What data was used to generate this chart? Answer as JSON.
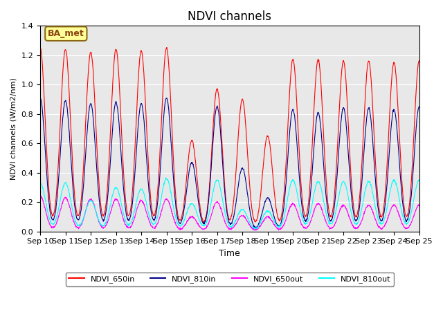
{
  "title": "NDVI channels",
  "xlabel": "Time",
  "ylabel": "NDVI channels (W/m2/nm)",
  "ylim": [
    0.0,
    1.4
  ],
  "annotation": "BA_met",
  "bg_color": "#e8e8e8",
  "legend": [
    "NDVI_650in",
    "NDVI_810in",
    "NDVI_650out",
    "NDVI_810out"
  ],
  "colors": [
    "#ff0000",
    "#00008b",
    "#ff00ff",
    "#00ffff"
  ],
  "x_tick_labels": [
    "Sep 10",
    "Sep 11",
    "Sep 12",
    "Sep 13",
    "Sep 14",
    "Sep 15",
    "Sep 16",
    "Sep 17",
    "Sep 18",
    "Sep 19",
    "Sep 20",
    "Sep 21",
    "Sep 22",
    "Sep 23",
    "Sep 24",
    "Sep 25"
  ],
  "peaks_650in": [
    1.25,
    1.24,
    1.22,
    1.24,
    1.23,
    1.25,
    0.62,
    0.97,
    0.9,
    0.65,
    1.17,
    1.17,
    1.16,
    1.16,
    1.15,
    1.16
  ],
  "peaks_810in": [
    0.91,
    0.89,
    0.87,
    0.88,
    0.87,
    0.91,
    0.47,
    0.85,
    0.43,
    0.23,
    0.83,
    0.81,
    0.84,
    0.84,
    0.83,
    0.85
  ],
  "peaks_650out": [
    0.24,
    0.23,
    0.22,
    0.22,
    0.21,
    0.22,
    0.1,
    0.2,
    0.11,
    0.1,
    0.19,
    0.19,
    0.18,
    0.18,
    0.18,
    0.18
  ],
  "peaks_810out": [
    0.33,
    0.33,
    0.21,
    0.3,
    0.29,
    0.36,
    0.19,
    0.35,
    0.15,
    0.14,
    0.35,
    0.34,
    0.34,
    0.34,
    0.35,
    0.35
  ],
  "n_days": 15,
  "pts_per_day": 100
}
